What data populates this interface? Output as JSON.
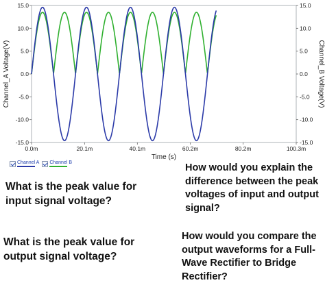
{
  "chart_data": {
    "type": "line",
    "xlabel": "Time (s)",
    "ylabel_left": "Channel_A Voltage(V)",
    "ylabel_right": "Channel_B Voltage(V)",
    "xlim": [
      0,
      100.3
    ],
    "ylim": [
      -15.0,
      15.0
    ],
    "x_ticks": [
      0,
      20.1,
      40.1,
      60.2,
      80.2,
      100.3
    ],
    "x_tick_labels": [
      "0.0m",
      "20.1m",
      "40.1m",
      "60.2m",
      "80.2m",
      "100.3m"
    ],
    "y_ticks": [
      15.0,
      10.0,
      5.0,
      0.0,
      -5.0,
      -10.0,
      -15.0
    ],
    "y_tick_labels_left": [
      "15.0",
      "10.0",
      "5.0",
      "0.0",
      "-5.0",
      "-10.0",
      "-15.0"
    ],
    "y_tick_labels_right": [
      "15.0",
      "10.0",
      "5.0",
      "0.0",
      "-5.0",
      "-10.0",
      "-15.0"
    ],
    "grid": false,
    "series": [
      {
        "name": "Channel A",
        "color": "#2b3aa8",
        "description_values": {
          "waveform": "sine",
          "amplitude": 14.6,
          "frequency_hz": 60,
          "x_end_ms": 70
        }
      },
      {
        "name": "Channel B",
        "color": "#2fb02f",
        "description_values": {
          "waveform": "full-wave rectified sine",
          "amplitude": 13.5,
          "frequency_hz": 60,
          "x_end_ms": 70
        }
      }
    ]
  },
  "legend": [
    {
      "label": "Channel A",
      "color": "#2b3aa8"
    },
    {
      "label": "Channel B",
      "color": "#2fb02f"
    }
  ],
  "questions": {
    "q1": "What is the peak value for input signal voltage?",
    "q2": "What is the peak value for output signal voltage?",
    "q3": "How would you explain the difference between the peak voltages of input and output signal?",
    "q4": "How would you compare the output waveforms for a Full-Wave Rectifier to Bridge Rectifier?"
  }
}
